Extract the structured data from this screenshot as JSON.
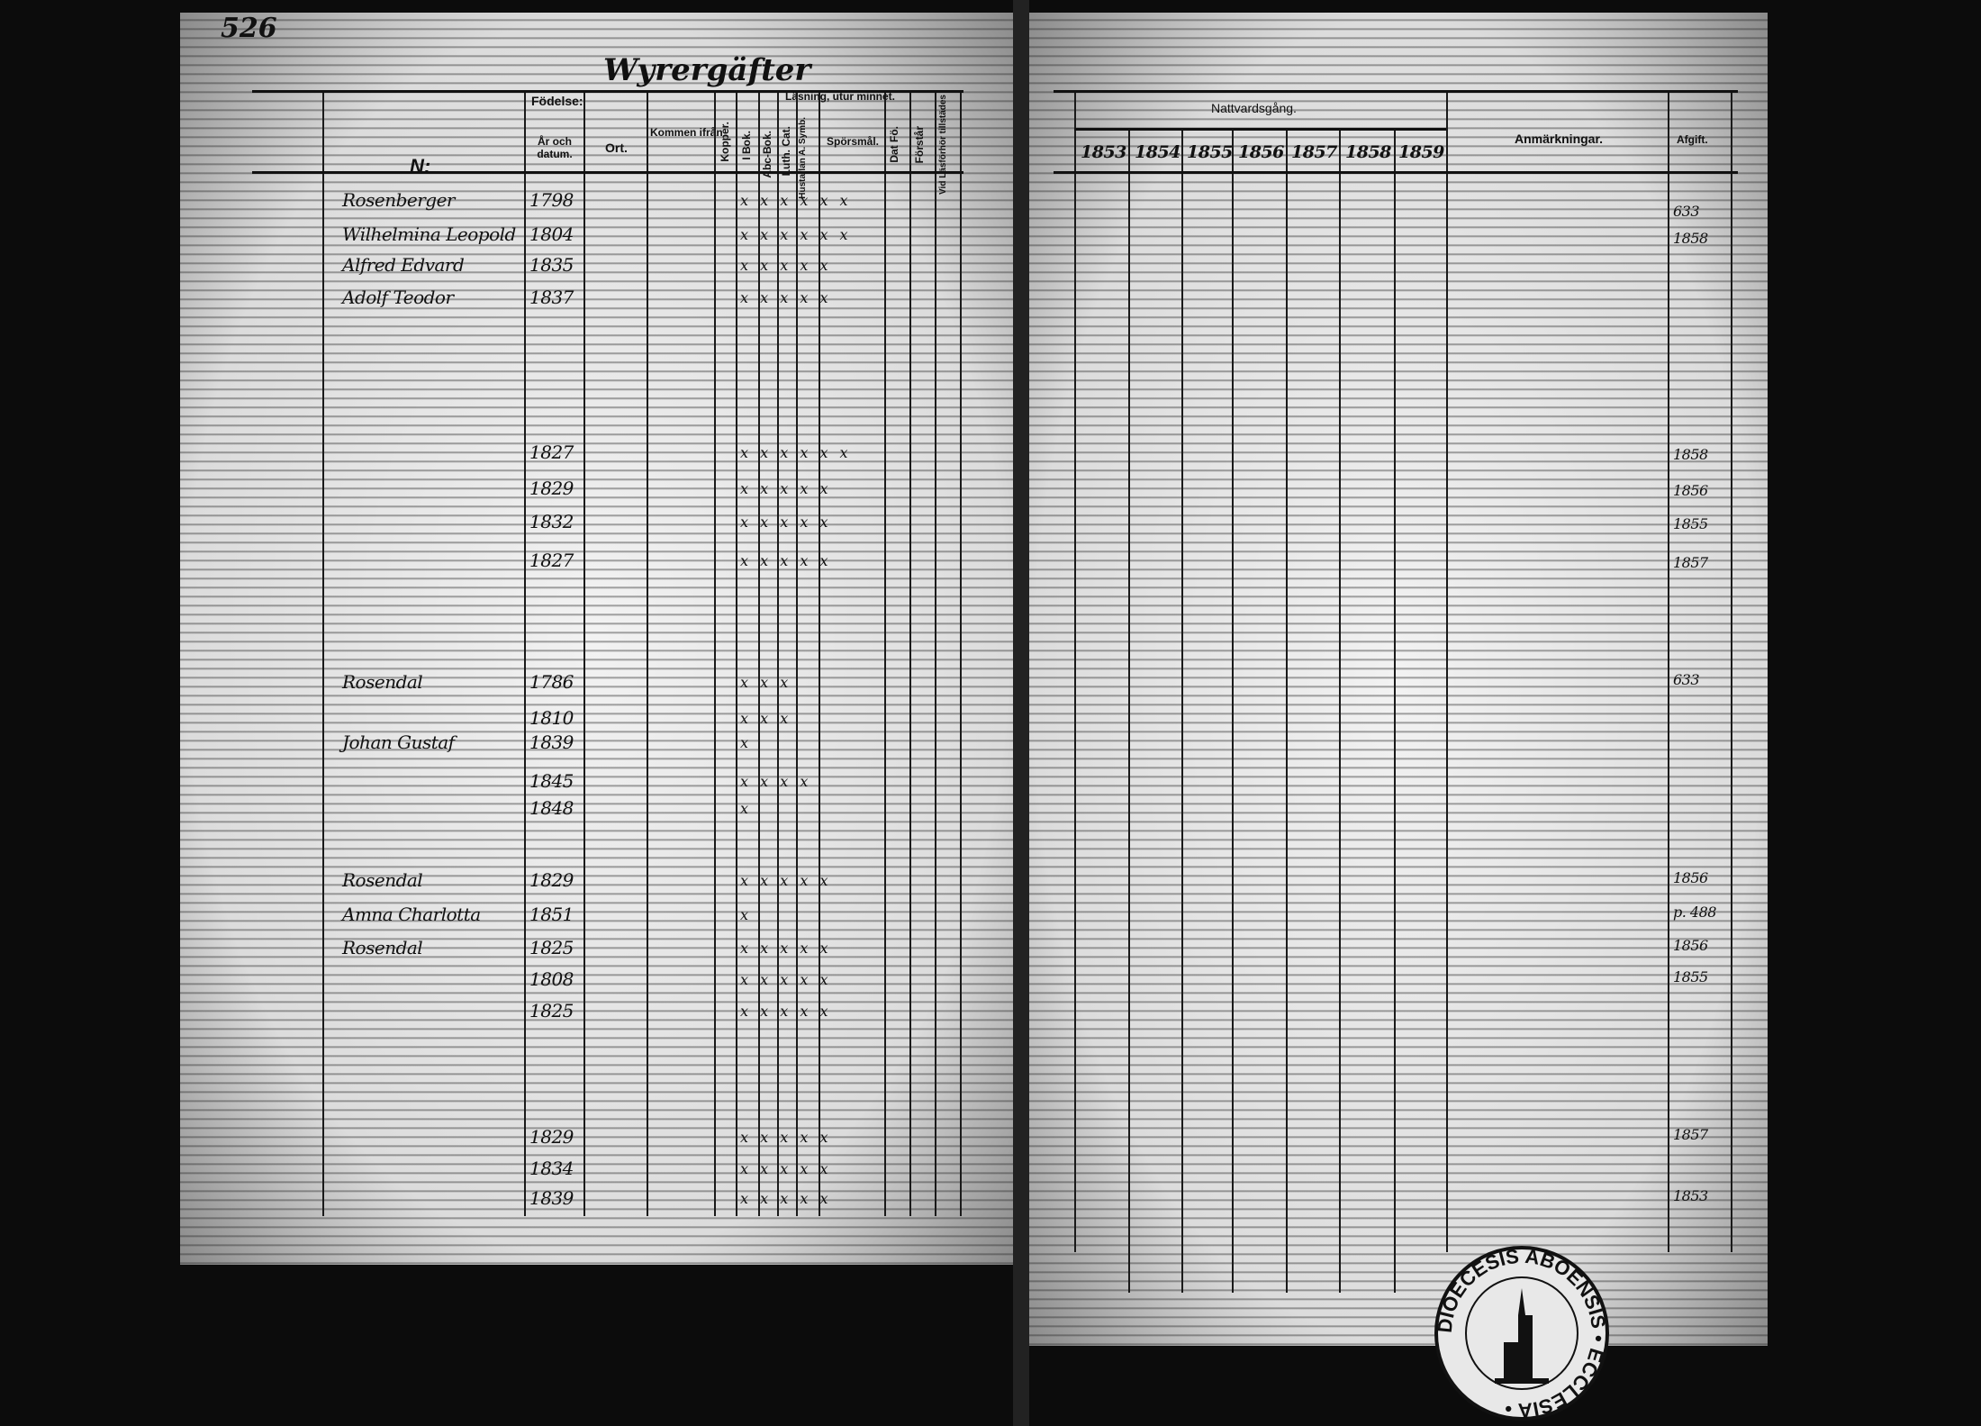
{
  "page_number": "526",
  "left_page": {
    "title": "Wyrergäfter",
    "headers": {
      "name_mark": "N:",
      "birth": "Födelse:",
      "birth_year": "År och datum.",
      "birth_place": "Ort.",
      "came_from": "Kommen ifrån",
      "smallpox": "Kopper.",
      "reading": "Läsning, utur minnet.",
      "i_bok": "I Bok.",
      "abc_bok": "Abc-Bok.",
      "luth_cat": "Luth. Cat.",
      "hustafla": "Hustaflan A. Symb.",
      "sporsmal": "Spörsmål.",
      "dat_fo": "Dat Fö.",
      "forstar": "Förstår",
      "vid_lasforhor": "Vid Läsförhör tillstädes"
    },
    "rows": [
      {
        "name": "Rosenberger",
        "year": "1798",
        "marks": "x x x x x x"
      },
      {
        "name": "Wilhelmina Leopold",
        "year": "1804",
        "marks": "x x x x x x"
      },
      {
        "name": "Alfred Edvard",
        "year": "1835",
        "marks": "x x x x x"
      },
      {
        "name": "Adolf Teodor",
        "year": "1837",
        "marks": "x x x x x"
      },
      {
        "name": "",
        "year": "1827",
        "marks": "x x x x x x"
      },
      {
        "name": "",
        "year": "1829",
        "marks": "x x x x x"
      },
      {
        "name": "",
        "year": "1832",
        "marks": "x x x x x"
      },
      {
        "name": "",
        "year": "1827",
        "marks": "x x x x x"
      },
      {
        "name": "Rosendal",
        "year": "1786",
        "marks": "x x x"
      },
      {
        "name": "",
        "year": "1810",
        "marks": "x x x"
      },
      {
        "name": "Johan Gustaf",
        "year": "1839",
        "marks": "x"
      },
      {
        "name": "",
        "year": "1845",
        "marks": "x x x x"
      },
      {
        "name": "",
        "year": "1848",
        "marks": "x"
      },
      {
        "name": "Rosendal",
        "year": "1829",
        "marks": "x x x x x"
      },
      {
        "name": "Amna Charlotta",
        "year": "1851",
        "marks": "x"
      },
      {
        "name": "Rosendal",
        "year": "1825",
        "marks": "x x x x x"
      },
      {
        "name": "",
        "year": "1808",
        "marks": "x x x x x"
      },
      {
        "name": "",
        "year": "1825",
        "marks": "x x x x x"
      },
      {
        "name": "",
        "year": "1829",
        "marks": "x x x x x"
      },
      {
        "name": "",
        "year": "1834",
        "marks": "x x x x x"
      },
      {
        "name": "",
        "year": "1839",
        "marks": "x x x x x"
      }
    ]
  },
  "right_page": {
    "headers": {
      "communion": "Nattvardsgång.",
      "years": [
        "1853",
        "1854",
        "1855",
        "1856",
        "1857",
        "1858",
        "1859"
      ],
      "remarks": "Anmärkningar.",
      "departure": "Afgift."
    },
    "afgift_entries": [
      "633",
      "1858",
      "1858",
      "1856",
      "1855",
      "1857",
      "633",
      "1856",
      "p. 488",
      "1856",
      "1855",
      "1857",
      "1853"
    ]
  },
  "stamp": {
    "text": "DIOECESIS ABOENSIS • ECCLESIA •"
  }
}
